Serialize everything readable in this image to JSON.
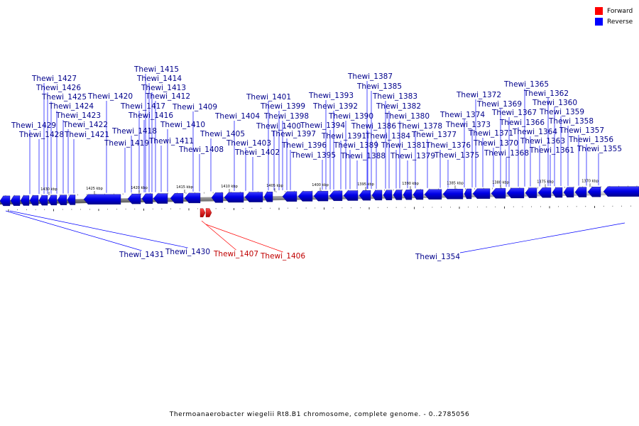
{
  "legend": {
    "forward": {
      "label": "Forward",
      "color": "#ff0000"
    },
    "reverse": {
      "label": "Reverse",
      "color": "#0000ff"
    }
  },
  "caption": "Thermoanaerobacter wiegelii Rt8.B1 chromosome, complete genome. - 0..2785056",
  "ticks_kbp": [
    "1430 kbp",
    "1425 kbp",
    "1420 kbp",
    "1415 kbp",
    "1410 kbp",
    "1405 kbp",
    "1400 kbp",
    "1395 kbp",
    "1390 kbp",
    "1385 kbp",
    "1380 kbp",
    "1375 kbp",
    "1370 kbp"
  ],
  "reverse_genes_top": [
    "Thewi_1429",
    "Thewi_1428",
    "Thewi_1427",
    "Thewi_1426",
    "Thewi_1425",
    "Thewi_1424",
    "Thewi_1423",
    "Thewi_1422",
    "Thewi_1421",
    "Thewi_1420",
    "Thewi_1419",
    "Thewi_1418",
    "Thewi_1417",
    "Thewi_1416",
    "Thewi_1415",
    "Thewi_1414",
    "Thewi_1413",
    "Thewi_1412",
    "Thewi_1411",
    "Thewi_1410",
    "Thewi_1409",
    "Thewi_1408",
    "Thewi_1405",
    "Thewi_1404",
    "Thewi_1403",
    "Thewi_1402",
    "Thewi_1401",
    "Thewi_1400",
    "Thewi_1399",
    "Thewi_1398",
    "Thewi_1397",
    "Thewi_1396",
    "Thewi_1395",
    "Thewi_1394",
    "Thewi_1393",
    "Thewi_1392",
    "Thewi_1391",
    "Thewi_1390",
    "Thewi_1389",
    "Thewi_1388",
    "Thewi_1387",
    "Thewi_1386",
    "Thewi_1385",
    "Thewi_1384",
    "Thewi_1383",
    "Thewi_1382",
    "Thewi_1381",
    "Thewi_1380",
    "Thewi_1379",
    "Thewi_1378",
    "Thewi_1377",
    "Thewi_1376",
    "Thewi_1375",
    "Thewi_1374",
    "Thewi_1373",
    "Thewi_1372",
    "Thewi_1371",
    "Thewi_1370",
    "Thewi_1369",
    "Thewi_1368",
    "Thewi_1367",
    "Thewi_1366",
    "Thewi_1365",
    "Thewi_1364",
    "Thewi_1363",
    "Thewi_1362",
    "Thewi_1361",
    "Thewi_1360",
    "Thewi_1359",
    "Thewi_1358",
    "Thewi_1357",
    "Thewi_1356",
    "Thewi_1355"
  ],
  "bottom_genes": [
    {
      "name": "Thewi_1431",
      "strand": "reverse"
    },
    {
      "name": "Thewi_1430",
      "strand": "reverse"
    },
    {
      "name": "Thewi_1407",
      "strand": "forward"
    },
    {
      "name": "Thewi_1406",
      "strand": "forward"
    },
    {
      "name": "Thewi_1354",
      "strand": "reverse"
    }
  ]
}
